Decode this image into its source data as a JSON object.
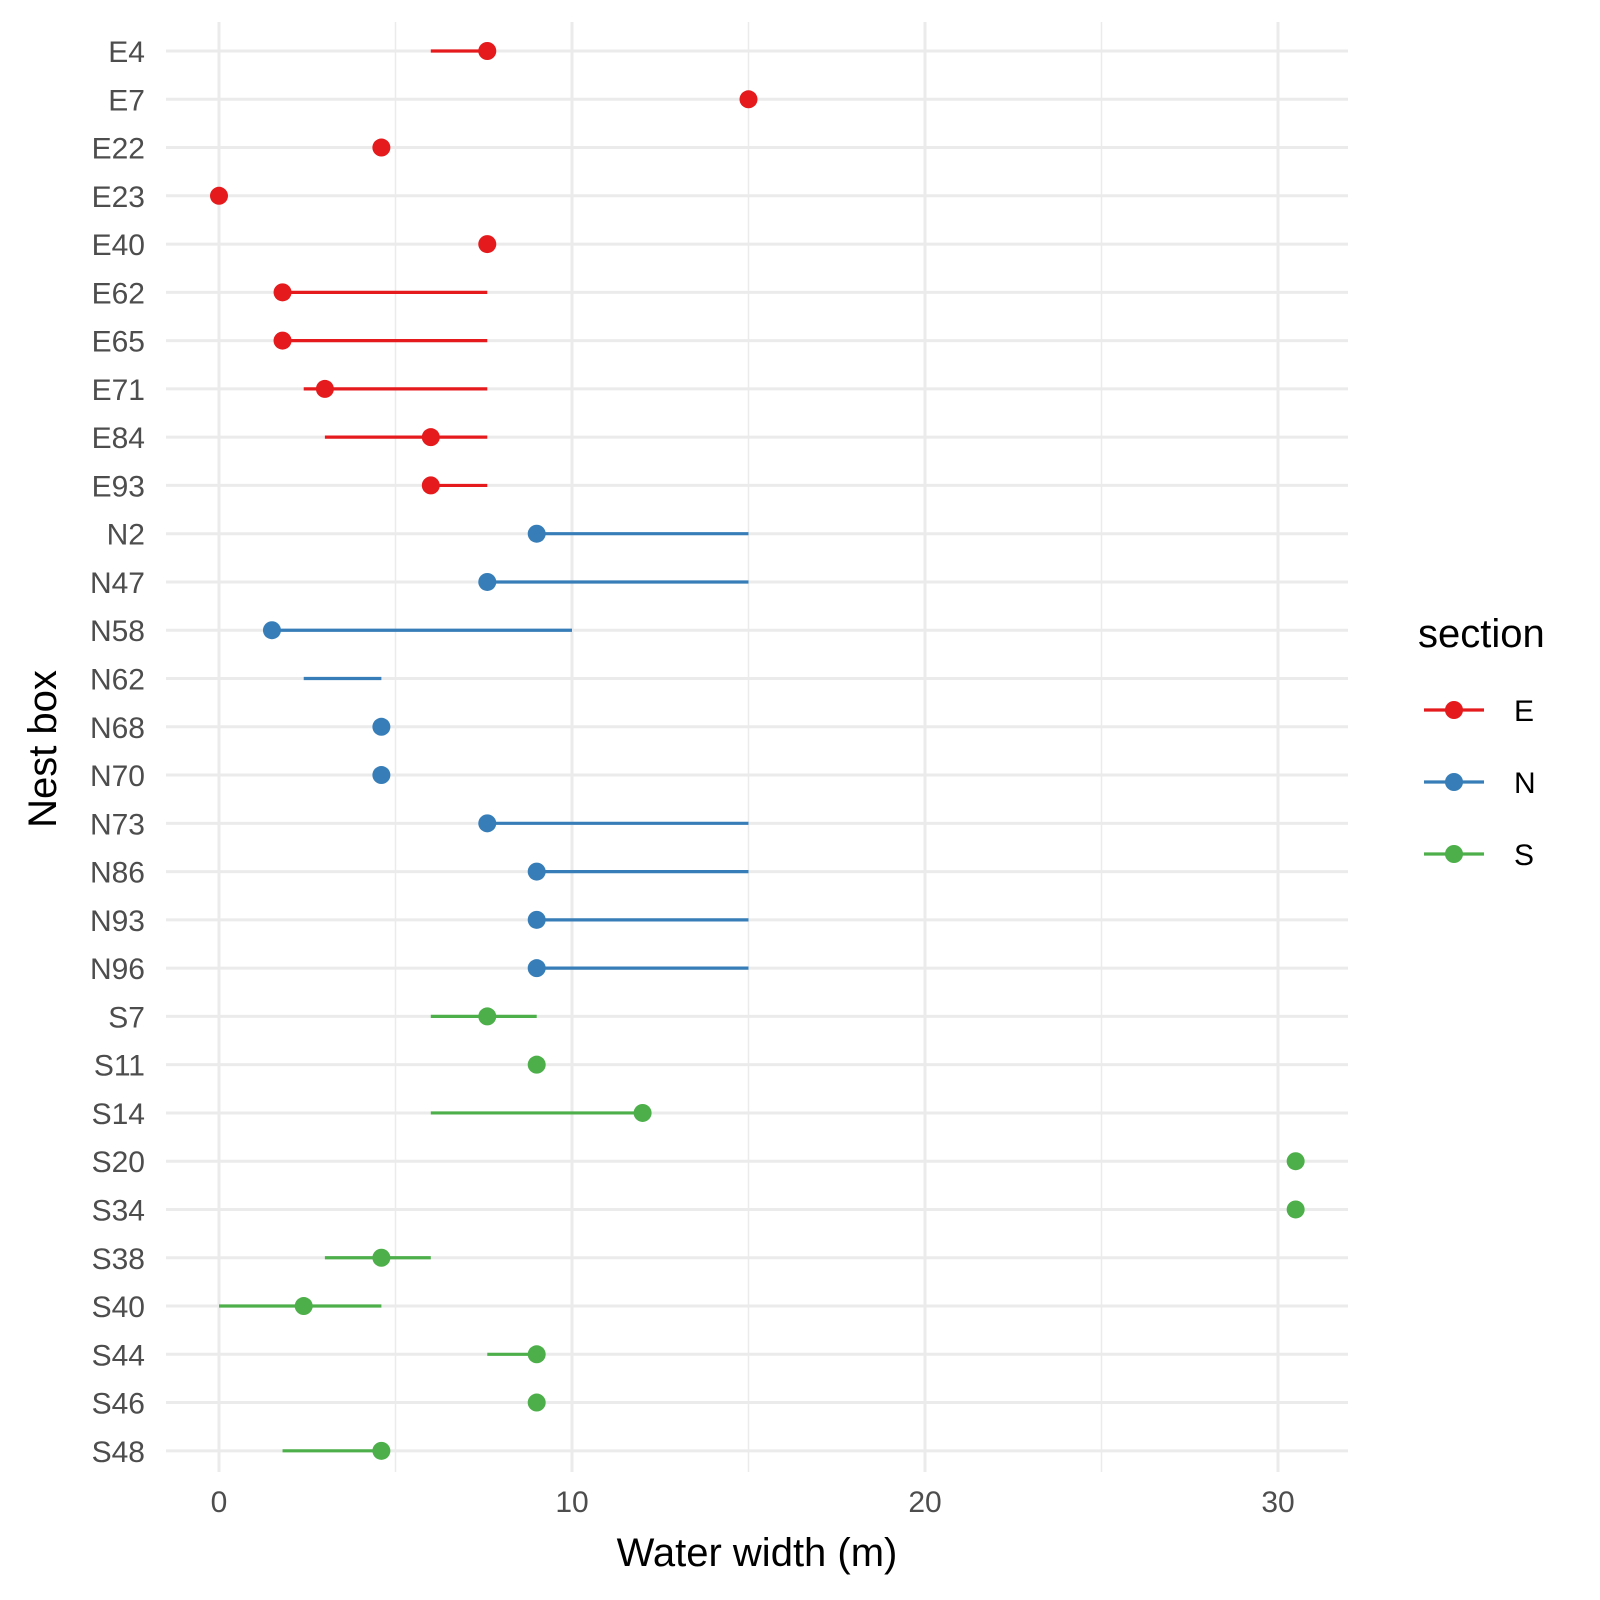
{
  "chart_data": {
    "type": "dot-range",
    "xlabel": "Water width (m)",
    "ylabel": "Nest box",
    "xlim": [
      -1.6,
      32
    ],
    "x_ticks": [
      0,
      10,
      20,
      30
    ],
    "x_minor_ticks": [
      5,
      15,
      25
    ],
    "grid": true,
    "legend": {
      "title": "section",
      "placement": "right",
      "entries": [
        {
          "label": "E",
          "color": "#e41a1c"
        },
        {
          "label": "N",
          "color": "#377eb8"
        },
        {
          "label": "S",
          "color": "#4daf4a"
        }
      ]
    },
    "rows": [
      {
        "box": "E4",
        "section": "E",
        "point": 7.6,
        "range": [
          6.0,
          7.6
        ]
      },
      {
        "box": "E7",
        "section": "E",
        "point": 15.0,
        "range": null
      },
      {
        "box": "E22",
        "section": "E",
        "point": 4.6,
        "range": null
      },
      {
        "box": "E23",
        "section": "E",
        "point": 0.0,
        "range": null
      },
      {
        "box": "E40",
        "section": "E",
        "point": 7.6,
        "range": null
      },
      {
        "box": "E62",
        "section": "E",
        "point": 1.8,
        "range": [
          1.8,
          7.6
        ]
      },
      {
        "box": "E65",
        "section": "E",
        "point": 1.8,
        "range": [
          1.8,
          7.6
        ]
      },
      {
        "box": "E71",
        "section": "E",
        "point": 3.0,
        "range": [
          2.4,
          7.6
        ]
      },
      {
        "box": "E84",
        "section": "E",
        "point": 6.0,
        "range": [
          3.0,
          7.6
        ]
      },
      {
        "box": "E93",
        "section": "E",
        "point": 6.0,
        "range": [
          6.0,
          7.6
        ]
      },
      {
        "box": "N2",
        "section": "N",
        "point": 9.0,
        "range": [
          9.0,
          15.0
        ]
      },
      {
        "box": "N47",
        "section": "N",
        "point": 7.6,
        "range": [
          7.6,
          15.0
        ]
      },
      {
        "box": "N58",
        "section": "N",
        "point": 1.5,
        "range": [
          1.5,
          10.0
        ]
      },
      {
        "box": "N62",
        "section": "N",
        "point": null,
        "range": [
          2.4,
          4.6
        ]
      },
      {
        "box": "N68",
        "section": "N",
        "point": 4.6,
        "range": null
      },
      {
        "box": "N70",
        "section": "N",
        "point": 4.6,
        "range": null
      },
      {
        "box": "N73",
        "section": "N",
        "point": 7.6,
        "range": [
          7.6,
          15.0
        ]
      },
      {
        "box": "N86",
        "section": "N",
        "point": 9.0,
        "range": [
          9.0,
          15.0
        ]
      },
      {
        "box": "N93",
        "section": "N",
        "point": 9.0,
        "range": [
          9.0,
          15.0
        ]
      },
      {
        "box": "N96",
        "section": "N",
        "point": 9.0,
        "range": [
          9.0,
          15.0
        ]
      },
      {
        "box": "S7",
        "section": "S",
        "point": 7.6,
        "range": [
          6.0,
          9.0
        ]
      },
      {
        "box": "S11",
        "section": "S",
        "point": 9.0,
        "range": null
      },
      {
        "box": "S14",
        "section": "S",
        "point": 12.0,
        "range": [
          6.0,
          12.0
        ]
      },
      {
        "box": "S20",
        "section": "S",
        "point": 30.5,
        "range": null
      },
      {
        "box": "S34",
        "section": "S",
        "point": 30.5,
        "range": null
      },
      {
        "box": "S38",
        "section": "S",
        "point": 4.6,
        "range": [
          3.0,
          6.0
        ]
      },
      {
        "box": "S40",
        "section": "S",
        "point": 2.4,
        "range": [
          0.0,
          4.6
        ]
      },
      {
        "box": "S44",
        "section": "S",
        "point": 9.0,
        "range": [
          7.6,
          9.0
        ]
      },
      {
        "box": "S46",
        "section": "S",
        "point": 9.0,
        "range": null
      },
      {
        "box": "S48",
        "section": "S",
        "point": 4.6,
        "range": [
          1.8,
          4.6
        ]
      }
    ]
  }
}
